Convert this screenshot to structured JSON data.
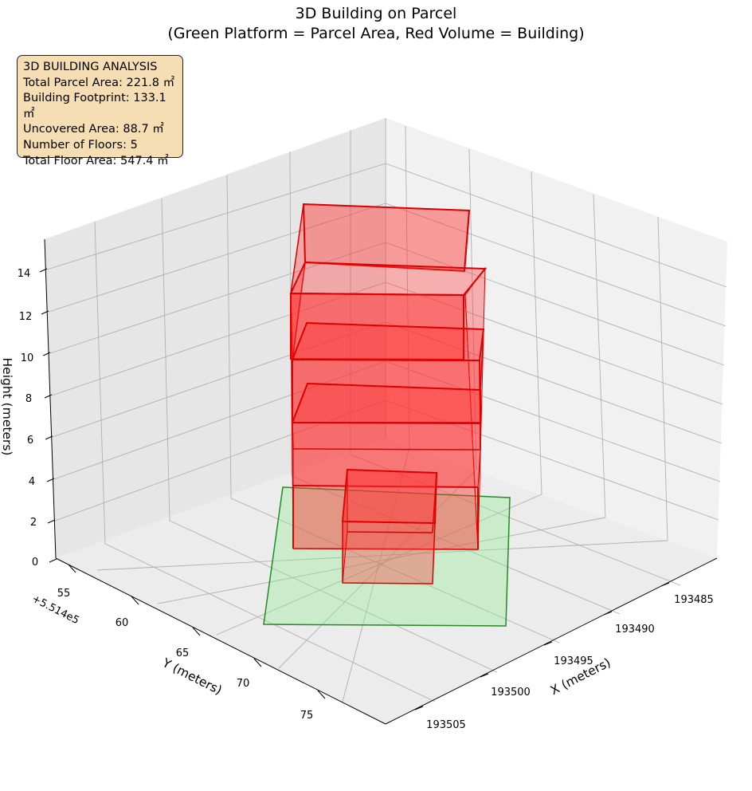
{
  "title": {
    "line1": "3D Building on Parcel",
    "line2": "(Green Platform = Parcel Area, Red Volume = Building)"
  },
  "info_box": {
    "heading": "3D BUILDING ANALYSIS",
    "lines": [
      "Total Parcel Area: 221.8 ㎡",
      "Building Footprint: 133.1 ㎡",
      "Uncovered Area: 88.7 ㎡",
      "Number of Floors: 5",
      "Total Floor Area: 547.4 ㎡"
    ]
  },
  "chart_data": {
    "type": "3d-box",
    "xlabel": "X (meters)",
    "ylabel": "Y (meters)",
    "zlabel": "Height (meters)",
    "y_offset_label": "+5.514e5",
    "x_ticks": [
      "193485",
      "193490",
      "193495",
      "193500",
      "193505"
    ],
    "y_ticks": [
      "55",
      "60",
      "65",
      "70",
      "75"
    ],
    "z_ticks": [
      "0",
      "2",
      "4",
      "6",
      "8",
      "10",
      "12",
      "14"
    ],
    "colors": {
      "parcel_fill": "#90ee90",
      "parcel_edge": "#228b22",
      "building_fill": "#ff3030",
      "building_edge": "#dd0000",
      "pane": "#f2f2f2",
      "grid": "#b0b0b0"
    },
    "parcel": {
      "area_m2": 221.8
    },
    "building": {
      "footprint_m2": 133.1,
      "floors": 5,
      "total_floor_area_m2": 547.4
    }
  }
}
